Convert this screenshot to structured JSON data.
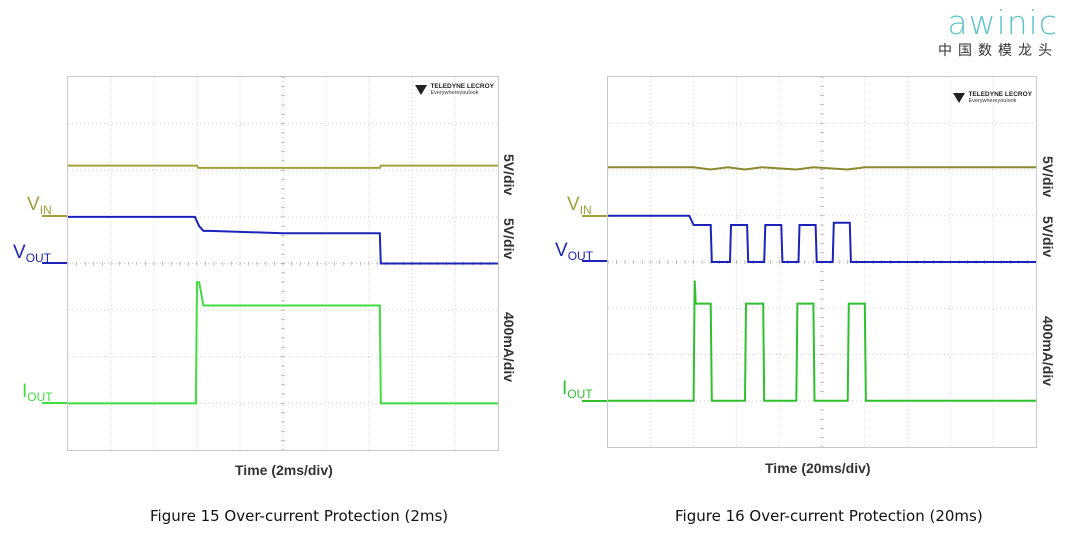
{
  "logo": {
    "word": "awinic",
    "tagline": "中国数模龙头"
  },
  "brand": {
    "name": "TELEDYNE LECROY",
    "slogan": "Everywhereyoulook"
  },
  "colors": {
    "vin": "#a3a03a",
    "vout": "#1c23b8",
    "iout": "#3fdc3f",
    "grid": "#9a9a9a"
  },
  "chart_data": [
    {
      "type": "line",
      "title": "Figure 15 Over-current Protection (2ms)",
      "xlabel": "Time (2ms/div)",
      "x_unit": "ms",
      "xlim": [
        0,
        20
      ],
      "labels": {
        "vin": "V",
        "vin_sub": "IN",
        "vout": "V",
        "vout_sub": "OUT",
        "iout": "I",
        "iout_sub": "OUT"
      },
      "scales": [
        "5V/div",
        "5V/div",
        "400mA/div"
      ],
      "series": [
        {
          "name": "VIN",
          "color": "#a3a03a",
          "divs_y": [
            6.1,
            6.1,
            6.05,
            6.05,
            6.1,
            6.1
          ],
          "x": [
            0,
            6.0,
            6.05,
            14.5,
            14.55,
            20
          ]
        },
        {
          "name": "VOUT",
          "color": "#1c23b8",
          "x": [
            0,
            5.9,
            6.1,
            6.3,
            6.6,
            10,
            14.5,
            14.55,
            20
          ],
          "divs_y": [
            5.0,
            5.0,
            4.8,
            4.7,
            4.7,
            4.65,
            4.65,
            4.0,
            4.0
          ]
        },
        {
          "name": "IOUT",
          "color": "#3fdc3f",
          "x": [
            0,
            5.95,
            6.0,
            6.1,
            6.3,
            6.6,
            14.5,
            14.55,
            20
          ],
          "divs_y": [
            1.0,
            1.0,
            3.6,
            3.6,
            3.1,
            3.1,
            3.1,
            1.0,
            1.0
          ]
        }
      ]
    },
    {
      "type": "line",
      "title": "Figure 16 Over-current Protection (20ms)",
      "xlabel": "Time (20ms/div)",
      "x_unit": "ms",
      "xlim": [
        0,
        200
      ],
      "labels": {
        "vin": "V",
        "vin_sub": "IN",
        "vout": "V",
        "vout_sub": "OUT",
        "iout": "I",
        "iout_sub": "OUT"
      },
      "scales": [
        "5V/div",
        "5V/div",
        "400mA/div"
      ],
      "series": [
        {
          "name": "VIN",
          "color": "#8c8a2e",
          "x": [
            0,
            40,
            48,
            56,
            64,
            72,
            88,
            96,
            112,
            120,
            200
          ],
          "divs_y": [
            6.05,
            6.05,
            6.0,
            6.05,
            6.0,
            6.05,
            6.0,
            6.05,
            6.0,
            6.05,
            6.05
          ]
        },
        {
          "name": "VOUT",
          "color": "#1c23b8",
          "x": [
            0,
            38,
            40,
            48,
            48.5,
            57,
            57.5,
            65,
            65.5,
            73,
            73.5,
            81,
            81.5,
            89,
            89.5,
            97,
            97.5,
            105,
            105.5,
            113,
            113.5,
            200
          ],
          "divs_y": [
            5.0,
            5.0,
            4.8,
            4.8,
            4.0,
            4.0,
            4.8,
            4.8,
            4.0,
            4.0,
            4.8,
            4.8,
            4.0,
            4.0,
            4.8,
            4.8,
            4.0,
            4.0,
            4.85,
            4.85,
            4.0,
            4.0
          ]
        },
        {
          "name": "IOUT",
          "color": "#2fbf2f",
          "x": [
            0,
            40,
            40.5,
            41,
            48,
            48.5,
            64,
            64.5,
            72.5,
            73,
            88,
            88.5,
            96,
            96.5,
            112,
            112.5,
            120,
            120.5,
            200
          ],
          "divs_y": [
            1.0,
            1.0,
            3.6,
            3.1,
            3.1,
            1.0,
            1.0,
            3.1,
            3.1,
            1.0,
            1.0,
            3.1,
            3.1,
            1.0,
            1.0,
            3.1,
            3.1,
            1.0,
            1.0
          ]
        }
      ]
    }
  ]
}
